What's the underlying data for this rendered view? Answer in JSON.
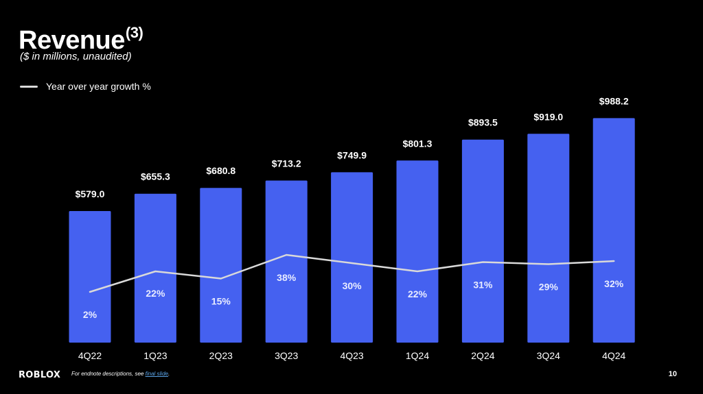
{
  "header": {
    "title": "Revenue",
    "title_superscript": "(3)",
    "subtitle": "($ in millions, unaudited)"
  },
  "legend": {
    "label": "Year over year growth %"
  },
  "colors": {
    "bar": "#4561f0",
    "line": "#d9d9d9",
    "background": "#000000",
    "link": "#5ba3e6"
  },
  "chart_data": {
    "type": "bar",
    "categories": [
      "4Q22",
      "1Q23",
      "2Q23",
      "3Q23",
      "4Q23",
      "1Q24",
      "2Q24",
      "3Q24",
      "4Q24"
    ],
    "series": [
      {
        "type": "bar",
        "values": [
          579.0,
          655.3,
          680.8,
          713.2,
          749.9,
          801.3,
          893.5,
          919.0,
          988.2
        ],
        "labels": [
          "$579.0",
          "$655.3",
          "$680.8",
          "$713.2",
          "$749.9",
          "$801.3",
          "$893.5",
          "$919.0",
          "$988.2"
        ]
      },
      {
        "type": "line",
        "name": "Year over year growth %",
        "values": [
          2,
          22,
          15,
          38,
          30,
          22,
          31,
          29,
          32
        ],
        "labels": [
          "2%",
          "22%",
          "15%",
          "38%",
          "30%",
          "22%",
          "31%",
          "29%",
          "32%"
        ]
      }
    ],
    "legend": "top-left",
    "grid": false
  },
  "footer": {
    "logo": "ROBLOX",
    "endnote_prefix": "For endnote descriptions, see ",
    "endnote_link": "final slide",
    "endnote_suffix": ".",
    "page_number": "10"
  }
}
